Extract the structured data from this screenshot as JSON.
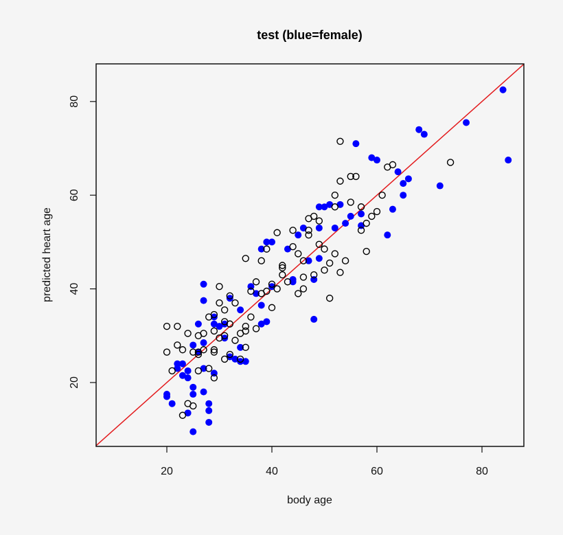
{
  "chart_data": {
    "type": "scatter",
    "title": "test (blue=female)",
    "xlabel": "body age",
    "ylabel": "predicted heart age",
    "xlim": [
      6.2,
      88
    ],
    "ylim": [
      6.8,
      88.5
    ],
    "xticks": [
      20,
      40,
      60,
      80
    ],
    "yticks": [
      20,
      40,
      60,
      80
    ],
    "grid": false,
    "legend": null,
    "reference_line": {
      "type": "identity",
      "equation": "y = x",
      "color": "#e31a1c"
    },
    "series": [
      {
        "name": "female",
        "marker": "filled-circle",
        "color": "#0000ff",
        "points": [
          [
            20,
            17.5
          ],
          [
            20,
            17
          ],
          [
            21,
            15.5
          ],
          [
            22,
            23
          ],
          [
            22,
            24
          ],
          [
            23,
            21.5
          ],
          [
            23,
            24
          ],
          [
            24,
            21
          ],
          [
            24,
            22.5
          ],
          [
            24,
            13.5
          ],
          [
            25,
            19
          ],
          [
            25,
            17.5
          ],
          [
            25,
            9.5
          ],
          [
            25,
            28
          ],
          [
            26,
            32.5
          ],
          [
            26,
            26.5
          ],
          [
            27,
            41
          ],
          [
            27,
            37.5
          ],
          [
            27,
            28.5
          ],
          [
            27,
            23
          ],
          [
            27,
            18
          ],
          [
            28,
            15.5
          ],
          [
            28,
            14
          ],
          [
            28,
            11.5
          ],
          [
            29,
            34
          ],
          [
            29,
            32.5
          ],
          [
            29,
            22
          ],
          [
            30,
            32
          ],
          [
            31,
            29.5
          ],
          [
            31,
            32.5
          ],
          [
            32,
            38
          ],
          [
            32,
            25.5
          ],
          [
            33,
            25
          ],
          [
            34,
            24.5
          ],
          [
            34,
            27.5
          ],
          [
            34,
            35.5
          ],
          [
            35,
            24.5
          ],
          [
            36,
            40.5
          ],
          [
            37,
            39
          ],
          [
            38,
            48.5
          ],
          [
            38,
            36.5
          ],
          [
            38,
            32.5
          ],
          [
            39,
            33
          ],
          [
            39,
            50
          ],
          [
            40,
            50
          ],
          [
            40,
            40.5
          ],
          [
            43,
            48.5
          ],
          [
            44,
            42
          ],
          [
            44,
            41.5
          ],
          [
            45,
            51.5
          ],
          [
            46,
            53
          ],
          [
            47,
            46
          ],
          [
            48,
            42
          ],
          [
            48,
            33.5
          ],
          [
            49,
            57.5
          ],
          [
            49,
            53
          ],
          [
            49,
            46.5
          ],
          [
            50,
            57.5
          ],
          [
            51,
            58
          ],
          [
            52,
            53
          ],
          [
            53,
            58
          ],
          [
            54,
            54
          ],
          [
            55,
            55.5
          ],
          [
            56,
            71
          ],
          [
            57,
            56
          ],
          [
            57,
            53.5
          ],
          [
            59,
            68
          ],
          [
            60,
            67.5
          ],
          [
            62,
            51.5
          ],
          [
            63,
            57
          ],
          [
            64,
            65
          ],
          [
            65,
            62.5
          ],
          [
            65,
            60
          ],
          [
            66,
            63.5
          ],
          [
            68,
            74
          ],
          [
            69,
            73
          ],
          [
            72,
            62
          ],
          [
            77,
            75.5
          ],
          [
            84,
            82.5
          ],
          [
            85,
            67.5
          ]
        ]
      },
      {
        "name": "male",
        "marker": "open-circle",
        "color": "#000000",
        "points": [
          [
            20,
            32
          ],
          [
            20,
            26.5
          ],
          [
            21,
            22.5
          ],
          [
            22,
            32
          ],
          [
            22,
            28
          ],
          [
            23,
            13
          ],
          [
            23,
            27
          ],
          [
            24,
            30.5
          ],
          [
            24,
            15.5
          ],
          [
            25,
            26.5
          ],
          [
            25,
            15
          ],
          [
            26,
            30
          ],
          [
            26,
            26.5
          ],
          [
            26,
            26
          ],
          [
            26,
            22.5
          ],
          [
            27,
            30.5
          ],
          [
            27,
            27
          ],
          [
            28,
            34
          ],
          [
            28,
            23
          ],
          [
            29,
            34.5
          ],
          [
            29,
            31
          ],
          [
            29,
            27
          ],
          [
            29,
            26.5
          ],
          [
            29,
            21
          ],
          [
            30,
            40.5
          ],
          [
            30,
            37
          ],
          [
            30,
            29.5
          ],
          [
            31,
            35.5
          ],
          [
            31,
            33
          ],
          [
            31,
            30
          ],
          [
            31,
            25
          ],
          [
            32,
            38.5
          ],
          [
            32,
            32.5
          ],
          [
            32,
            26
          ],
          [
            33,
            37
          ],
          [
            33,
            29
          ],
          [
            34,
            30.5
          ],
          [
            34,
            25
          ],
          [
            35,
            46.5
          ],
          [
            35,
            32
          ],
          [
            35,
            31
          ],
          [
            35,
            27.5
          ],
          [
            36,
            39.5
          ],
          [
            36,
            34
          ],
          [
            37,
            41.5
          ],
          [
            37,
            31.5
          ],
          [
            38,
            46
          ],
          [
            38,
            39
          ],
          [
            39,
            39.5
          ],
          [
            39,
            48.5
          ],
          [
            40,
            36
          ],
          [
            40,
            41
          ],
          [
            41,
            52
          ],
          [
            41,
            40
          ],
          [
            42,
            45
          ],
          [
            42,
            44.5
          ],
          [
            42,
            43
          ],
          [
            43,
            41.5
          ],
          [
            44,
            52.5
          ],
          [
            44,
            49
          ],
          [
            45,
            47.5
          ],
          [
            45,
            39
          ],
          [
            46,
            46
          ],
          [
            46,
            42.5
          ],
          [
            46,
            40
          ],
          [
            47,
            55
          ],
          [
            47,
            52.5
          ],
          [
            47,
            51.5
          ],
          [
            48,
            43
          ],
          [
            48,
            55.5
          ],
          [
            49,
            54.5
          ],
          [
            49,
            49.5
          ],
          [
            50,
            48.5
          ],
          [
            50,
            44
          ],
          [
            51,
            45.5
          ],
          [
            51,
            38
          ],
          [
            52,
            57.5
          ],
          [
            52,
            60
          ],
          [
            52,
            47.5
          ],
          [
            53,
            63
          ],
          [
            53,
            71.5
          ],
          [
            53,
            43.5
          ],
          [
            54,
            46
          ],
          [
            55,
            64
          ],
          [
            55,
            58.5
          ],
          [
            56,
            64
          ],
          [
            57,
            57.5
          ],
          [
            57,
            52.5
          ],
          [
            58,
            54
          ],
          [
            58,
            48
          ],
          [
            59,
            55.5
          ],
          [
            60,
            56.5
          ],
          [
            61,
            60
          ],
          [
            62,
            66
          ],
          [
            63,
            66.5
          ],
          [
            74,
            67
          ]
        ]
      }
    ]
  }
}
